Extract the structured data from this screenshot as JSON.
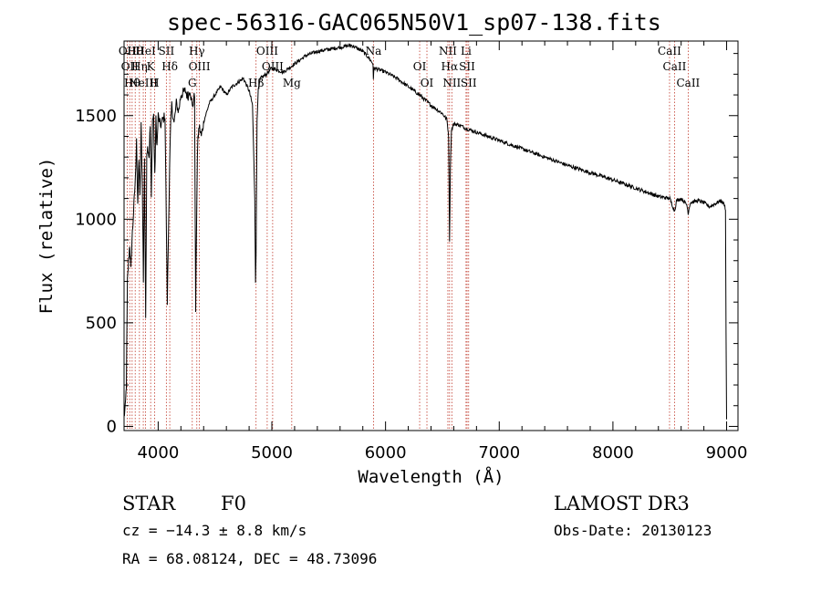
{
  "chart_data": {
    "type": "line",
    "title": "spec-56316-GAC065N50V1_sp07-138.fits",
    "xlabel": "Wavelength (Å)",
    "ylabel": "Flux (relative)",
    "xlim": [
      3700,
      9100
    ],
    "ylim": [
      -20,
      1860
    ],
    "xticks": [
      4000,
      5000,
      6000,
      7000,
      8000,
      9000
    ],
    "yticks": [
      0,
      500,
      1000,
      1500
    ],
    "series": [
      {
        "name": "flux",
        "x": [
          3700,
          3710,
          3720,
          3730,
          3740,
          3750,
          3760,
          3770,
          3780,
          3790,
          3800,
          3810,
          3820,
          3830,
          3840,
          3850,
          3860,
          3870,
          3880,
          3890,
          3900,
          3910,
          3920,
          3930,
          3940,
          3950,
          3960,
          3970,
          3980,
          3990,
          4000,
          4020,
          4040,
          4060,
          4080,
          4100,
          4110,
          4120,
          4140,
          4160,
          4180,
          4200,
          4220,
          4240,
          4260,
          4280,
          4300,
          4320,
          4330,
          4340,
          4345,
          4350,
          4360,
          4380,
          4400,
          4450,
          4500,
          4550,
          4600,
          4650,
          4700,
          4750,
          4800,
          4830,
          4850,
          4856,
          4861,
          4866,
          4870,
          4880,
          4900,
          4950,
          5000,
          5100,
          5200,
          5300,
          5400,
          5500,
          5600,
          5700,
          5750,
          5800,
          5850,
          5890,
          5893,
          5900,
          5950,
          6000,
          6100,
          6200,
          6300,
          6400,
          6500,
          6540,
          6555,
          6563,
          6570,
          6580,
          6600,
          6650,
          6700,
          6800,
          7000,
          7200,
          7400,
          7600,
          7800,
          8000,
          8200,
          8400,
          8500,
          8542,
          8560,
          8600,
          8650,
          8662,
          8680,
          8750,
          8800,
          8850,
          8900,
          8950,
          8980,
          8990,
          8995,
          9000
        ],
        "y": [
          50,
          80,
          200,
          700,
          800,
          880,
          750,
          900,
          1000,
          1100,
          1200,
          1400,
          1050,
          1300,
          1100,
          1450,
          1200,
          700,
          1300,
          500,
          1330,
          1350,
          1300,
          1450,
          1100,
          1480,
          1500,
          1200,
          1480,
          1350,
          1500,
          1450,
          1480,
          1500,
          600,
          1250,
          1450,
          1550,
          1460,
          1560,
          1520,
          1600,
          1610,
          1620,
          1590,
          1630,
          1540,
          1600,
          560,
          1100,
          1300,
          1380,
          1450,
          1400,
          1470,
          1560,
          1600,
          1640,
          1600,
          1640,
          1660,
          1680,
          1620,
          1550,
          1100,
          700,
          820,
          1200,
          1480,
          1620,
          1680,
          1700,
          1730,
          1710,
          1750,
          1790,
          1810,
          1820,
          1830,
          1840,
          1825,
          1810,
          1780,
          1750,
          1680,
          1730,
          1720,
          1710,
          1680,
          1640,
          1600,
          1550,
          1510,
          1480,
          1400,
          900,
          1250,
          1430,
          1460,
          1455,
          1440,
          1420,
          1380,
          1340,
          1300,
          1260,
          1225,
          1190,
          1150,
          1110,
          1100,
          1040,
          1090,
          1100,
          1070,
          1030,
          1080,
          1090,
          1080,
          1060,
          1075,
          1090,
          1070,
          1050,
          450,
          30
        ]
      }
    ],
    "line_markers": [
      {
        "wavelength": 3728,
        "label": "OII"
      },
      {
        "wavelength": 3750,
        "label": "OII"
      },
      {
        "wavelength": 3771,
        "label": "Hθ"
      },
      {
        "wavelength": 3798,
        "label": "Hθ"
      },
      {
        "wavelength": 3835,
        "label": "Hη"
      },
      {
        "wavelength": 3869,
        "label": "NeIII"
      },
      {
        "wavelength": 3889,
        "label": "HeI"
      },
      {
        "wavelength": 3934,
        "label": "K"
      },
      {
        "wavelength": 3968,
        "label": "H"
      },
      {
        "wavelength": 4072,
        "label": "SII"
      },
      {
        "wavelength": 4102,
        "label": "Hδ"
      },
      {
        "wavelength": 4300,
        "label": "G"
      },
      {
        "wavelength": 4340,
        "label": "Hγ"
      },
      {
        "wavelength": 4363,
        "label": "OIII"
      },
      {
        "wavelength": 4861,
        "label": "Hβ"
      },
      {
        "wavelength": 4959,
        "label": "OIII"
      },
      {
        "wavelength": 5007,
        "label": "OIII"
      },
      {
        "wavelength": 5175,
        "label": "Mg"
      },
      {
        "wavelength": 5894,
        "label": "Na"
      },
      {
        "wavelength": 6300,
        "label": "OI"
      },
      {
        "wavelength": 6364,
        "label": "OI"
      },
      {
        "wavelength": 6548,
        "label": "NII"
      },
      {
        "wavelength": 6563,
        "label": "Hα"
      },
      {
        "wavelength": 6583,
        "label": "NII"
      },
      {
        "wavelength": 6708,
        "label": "Li"
      },
      {
        "wavelength": 6717,
        "label": "SII"
      },
      {
        "wavelength": 6731,
        "label": "SII"
      },
      {
        "wavelength": 8498,
        "label": "CaII"
      },
      {
        "wavelength": 8542,
        "label": "CaII"
      },
      {
        "wavelength": 8662,
        "label": "CaII"
      }
    ],
    "colors": {
      "line": "#000000",
      "marker": "#c0392b",
      "axis": "#000000"
    }
  },
  "info": {
    "object_class": "STAR",
    "subclass": "F0",
    "survey": "LAMOST DR3",
    "redshift": "cz = −14.3 ± 8.8 km/s",
    "obs_date": "Obs-Date: 20130123",
    "coords": "RA =  68.08124, DEC =  48.73096"
  }
}
